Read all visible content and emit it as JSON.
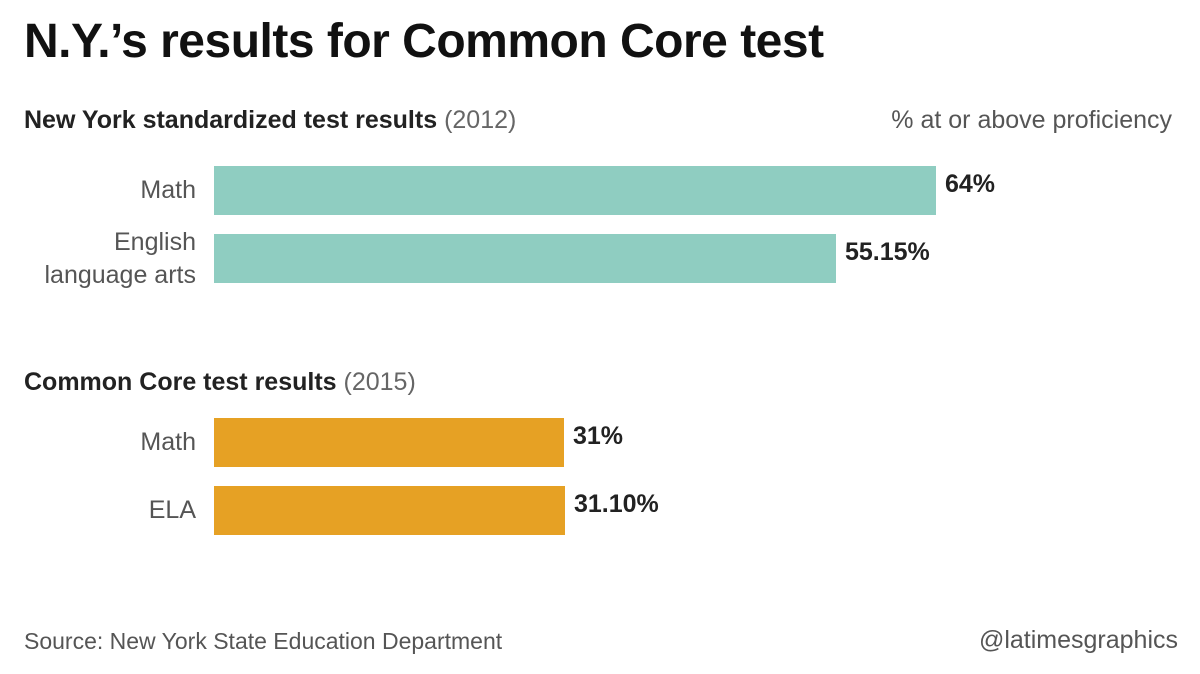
{
  "title": "N.Y.’s results for Common Core test",
  "unit_label": "% at or above proficiency",
  "colors": {
    "section1": "#8fcdc1",
    "section2": "#e6a124"
  },
  "chart_data": [
    {
      "type": "bar",
      "orientation": "horizontal",
      "title": "New York standardized test results",
      "title_suffix": "(2012)",
      "categories": [
        "Math",
        "English language arts"
      ],
      "category_lines": [
        [
          "Math"
        ],
        [
          "English",
          "language arts"
        ]
      ],
      "values": [
        64,
        55.15
      ],
      "value_labels": [
        "64%",
        "55.15%"
      ],
      "xlim": [
        0,
        64
      ]
    },
    {
      "type": "bar",
      "orientation": "horizontal",
      "title": "Common Core test results",
      "title_suffix": "(2015)",
      "categories": [
        "Math",
        "ELA"
      ],
      "category_lines": [
        [
          "Math"
        ],
        [
          "ELA"
        ]
      ],
      "values": [
        31,
        31.1
      ],
      "value_labels": [
        "31%",
        "31.10%"
      ],
      "xlim": [
        0,
        64
      ]
    }
  ],
  "footer": {
    "source": "Source: New York State Education Department",
    "credit": "@latimesgraphics"
  }
}
